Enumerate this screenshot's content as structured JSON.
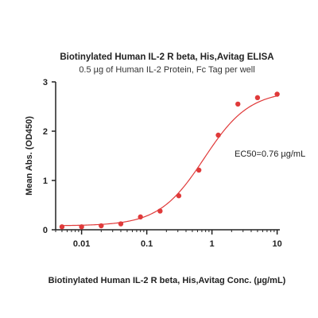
{
  "chart_data": {
    "type": "scatter",
    "title": "Biotinylated Human IL-2 R beta, His,Avitag ELISA",
    "subtitle": "0.5 µg of Human IL-2 Protein, Fc Tag per well",
    "xlabel": "Biotinylated Human IL-2 R beta, His,Avitag Conc. (µg/mL)",
    "ylabel": "Mean Abs. (OD450)",
    "x_scale": "log",
    "xlim": [
      0.004,
      11
    ],
    "ylim": [
      0,
      3
    ],
    "x_ticks": [
      0.01,
      0.1,
      1,
      10
    ],
    "x_tick_labels": [
      "0.01",
      "0.1",
      "1",
      "10"
    ],
    "y_ticks": [
      0,
      1,
      2,
      3
    ],
    "y_tick_labels": [
      "0",
      "1",
      "2",
      "3"
    ],
    "grid": false,
    "annotation": "EC50=0.76 µg/mL",
    "point_color": "#e03a3a",
    "curve_color": "#e03a3a",
    "series": [
      {
        "x": [
          0.005,
          0.01,
          0.02,
          0.04,
          0.08,
          0.16,
          0.31,
          0.63,
          1.25,
          2.5,
          5,
          10
        ],
        "y": [
          0.06,
          0.06,
          0.08,
          0.12,
          0.26,
          0.38,
          0.69,
          1.21,
          1.92,
          2.55,
          2.68,
          2.75
        ]
      }
    ],
    "fit": {
      "bottom": 0.08,
      "top": 2.82,
      "ec50": 0.76,
      "hill": 1.25
    }
  }
}
